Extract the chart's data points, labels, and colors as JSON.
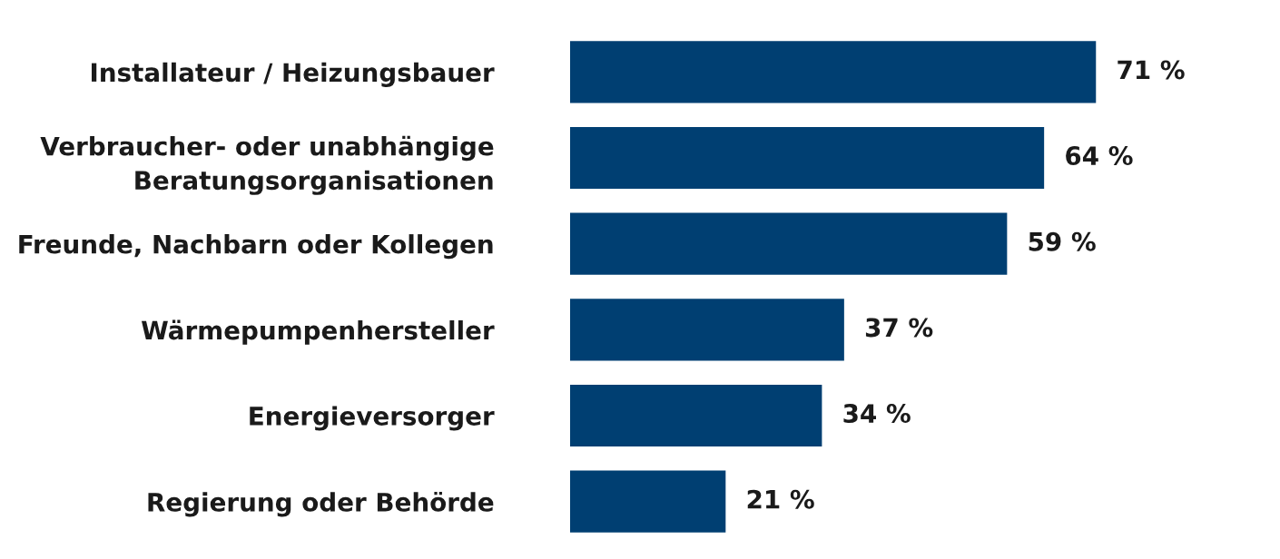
{
  "chart_data": {
    "type": "bar",
    "orientation": "horizontal",
    "categories": [
      "Installateur / Heizungsbauer",
      "Verbraucher- oder unabhängige\nBeratungsorganisationen",
      "Freunde, Nachbarn oder Kollegen",
      "Wärmepumpenhersteller",
      "Energieversorger",
      "Regierung oder Behörde"
    ],
    "values": [
      71,
      64,
      59,
      37,
      34,
      21
    ],
    "value_labels": [
      "71 %",
      "64 %",
      "59 %",
      "37 %",
      "34 %",
      "21 %"
    ],
    "color": "#003f72",
    "grid": false,
    "legend": false
  }
}
